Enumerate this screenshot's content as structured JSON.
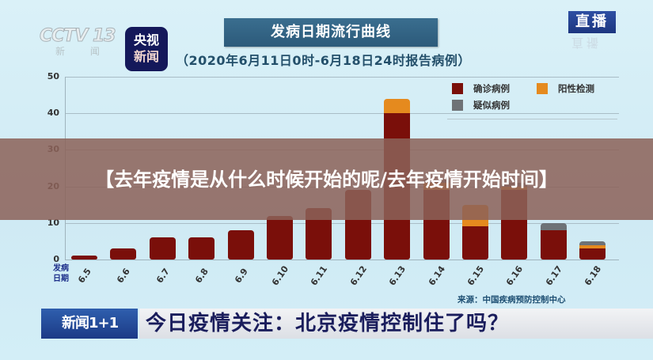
{
  "header": {
    "cctv_logo": "CCTV 13",
    "cctv_sub": "新 闻",
    "app_badge": {
      "line1": "央视",
      "line2": "新闻"
    },
    "title": "发病日期流行曲线",
    "subtitle": "（2020年6月11日0时-6月18日24时报告病例）",
    "live_badge": "直播",
    "live_reflection": "直播"
  },
  "overlay": {
    "text": "【去年疫情是从什么时候开始的呢/去年疫情开始时间】"
  },
  "source": "来源：中国疾病预防控制中心",
  "banner": {
    "logo": "新闻1+1",
    "text": "今日疫情关注：北京疫情控制住了吗？"
  },
  "colors": {
    "confirmed": "#7a0f0a",
    "positive": "#e58a1e",
    "suspected": "#6e7276",
    "background": "#d6eef6"
  },
  "chart_data": {
    "type": "bar",
    "stacked": true,
    "title": "发病日期流行曲线",
    "subtitle": "（2020年6月11日0时-6月18日24时报告病例）",
    "xlabel": "发病日期",
    "ylabel": "",
    "ylim": [
      0,
      50
    ],
    "yticks": [
      0,
      10,
      20,
      30,
      40,
      50
    ],
    "grid": true,
    "legend_position": "top-right",
    "categories": [
      "6.5",
      "6.6",
      "6.7",
      "6.8",
      "6.9",
      "6.10",
      "6.11",
      "6.12",
      "6.13",
      "6.14",
      "6.15",
      "6.16",
      "6.17",
      "6.18"
    ],
    "series": [
      {
        "name": "确诊病例",
        "color": "#7a0f0a",
        "values": [
          1,
          3,
          6,
          6,
          8,
          12,
          14,
          19,
          40,
          19,
          9,
          19,
          8,
          3
        ]
      },
      {
        "name": "阳性检测",
        "color": "#e58a1e",
        "values": [
          0,
          0,
          0,
          0,
          0,
          0,
          0,
          0,
          4,
          2,
          6,
          1,
          0,
          1
        ]
      },
      {
        "name": "疑似病例",
        "color": "#6e7276",
        "values": [
          0,
          0,
          0,
          0,
          0,
          0,
          0,
          0,
          0,
          1,
          0,
          1,
          2,
          1
        ]
      }
    ],
    "source": "来源：中国疾病预防控制中心"
  }
}
